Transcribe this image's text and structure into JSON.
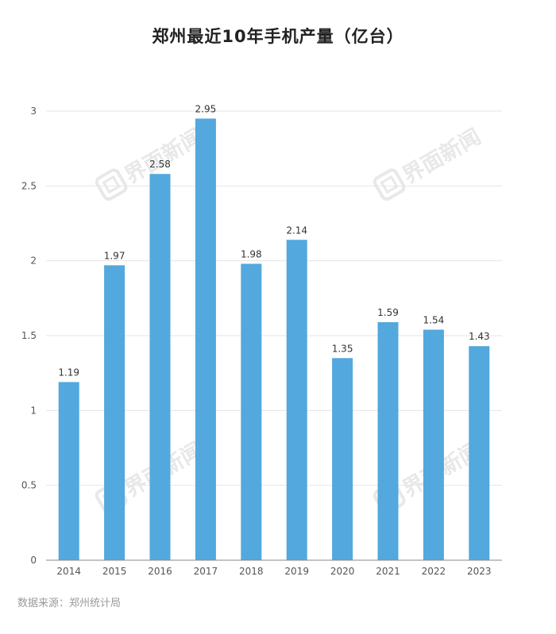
{
  "title": "郑州最近10年手机产量（亿台）",
  "source": "数据来源：郑州统计局",
  "watermark": "界面新闻",
  "colors": {
    "bar": "#53a8dd",
    "grid": "#e6e6e6",
    "axis": "#888888",
    "tick_text": "#555555",
    "label_text": "#333333",
    "watermark": "#d6d6d6"
  },
  "chart_data": {
    "type": "bar",
    "title": "郑州最近10年手机产量（亿台）",
    "categories": [
      "2014",
      "2015",
      "2016",
      "2017",
      "2018",
      "2019",
      "2020",
      "2021",
      "2022",
      "2023"
    ],
    "values": [
      1.19,
      1.97,
      2.58,
      2.95,
      1.98,
      2.14,
      1.35,
      1.59,
      1.54,
      1.43
    ],
    "value_labels": [
      "1.19",
      "1.97",
      "2.58",
      "2.95",
      "1.98",
      "2.14",
      "1.35",
      "1.59",
      "1.54",
      "1.43"
    ],
    "yticks": [
      "0",
      "0.5",
      "1",
      "1.5",
      "2",
      "2.5",
      "3"
    ],
    "ylim": [
      0,
      3
    ],
    "xlabel": "",
    "ylabel": "",
    "grid": true,
    "legend": "none"
  }
}
